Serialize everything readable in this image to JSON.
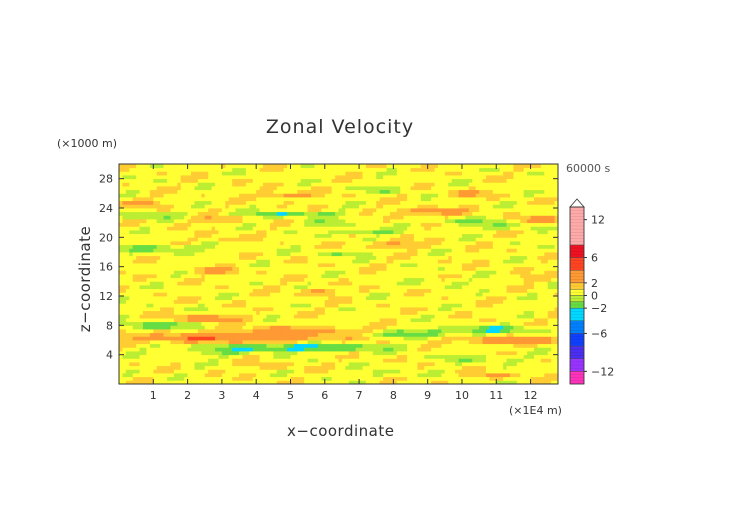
{
  "colors": {
    "bands": [
      "#ff33bb",
      "#9933ff",
      "#4b2ff0",
      "#1040ff",
      "#0080ff",
      "#00d8ff",
      "#66dd44",
      "#bbee33",
      "#ffff33",
      "#ffcc33",
      "#ff9933",
      "#ff4422",
      "#ee1122",
      "#ffaaaa"
    ]
  },
  "chart_data": {
    "type": "heatmap",
    "title": "Zonal Velocity",
    "time_label": "60000 s",
    "xlabel": "x−coordinate",
    "ylabel": "z−coordinate",
    "x_unit": "(×1E4 m)",
    "y_unit": "(×1000 m)",
    "xlim": [
      0,
      12.8
    ],
    "ylim": [
      0,
      30
    ],
    "x_ticks": [
      1,
      2,
      3,
      4,
      5,
      6,
      7,
      8,
      9,
      10,
      11,
      12
    ],
    "y_ticks": [
      4,
      8,
      12,
      16,
      20,
      24,
      28
    ],
    "colorbar": {
      "levels": [
        -14,
        -12,
        -10,
        -8,
        -6,
        -4,
        -2,
        -1,
        0,
        1,
        2,
        4,
        6,
        8,
        14
      ],
      "tick_values": [
        12,
        6,
        2,
        0,
        -2,
        -6,
        -12
      ],
      "tick_labels": [
        "12",
        "6",
        "2",
        "0",
        "−2",
        "−6",
        "−12"
      ],
      "extend": "max"
    },
    "field": {
      "description_of_features": "horizontally elongated alternating jets",
      "background": 0.6,
      "features": [
        {
          "x": 3.0,
          "z": 6.3,
          "u": 3.2,
          "sx": 3.0,
          "sz": 0.6
        },
        {
          "x": 11.5,
          "z": 6.0,
          "u": 3.0,
          "sx": 1.6,
          "sz": 0.5
        },
        {
          "x": 2.5,
          "z": 9.0,
          "u": 2.2,
          "sx": 1.2,
          "sz": 0.5
        },
        {
          "x": 5.5,
          "z": 7.3,
          "u": 2.6,
          "sx": 2.4,
          "sz": 0.5
        },
        {
          "x": 1.0,
          "z": 8.0,
          "u": -2.5,
          "sx": 1.2,
          "sz": 0.5
        },
        {
          "x": 5.0,
          "z": 5.0,
          "u": -3.4,
          "sx": 2.6,
          "sz": 0.5
        },
        {
          "x": 8.5,
          "z": 7.0,
          "u": -2.4,
          "sx": 1.6,
          "sz": 0.6
        },
        {
          "x": 11.0,
          "z": 7.5,
          "u": -2.2,
          "sx": 1.4,
          "sz": 0.5
        },
        {
          "x": 10.5,
          "z": 3.5,
          "u": -1.6,
          "sx": 1.2,
          "sz": 0.4
        },
        {
          "x": 2.8,
          "z": 4.2,
          "u": -1.2,
          "sx": 1.0,
          "sz": 0.4
        },
        {
          "x": 7.5,
          "z": 1.5,
          "u": -1.0,
          "sx": 1.0,
          "sz": 0.5
        },
        {
          "x": 1.2,
          "z": 18.5,
          "u": -2.0,
          "sx": 1.5,
          "sz": 0.5
        },
        {
          "x": 2.8,
          "z": 15.5,
          "u": 2.2,
          "sx": 0.7,
          "sz": 0.4
        },
        {
          "x": 5.8,
          "z": 12.6,
          "u": 2.0,
          "sx": 0.6,
          "sz": 0.5
        },
        {
          "x": 8.0,
          "z": 19.0,
          "u": 2.4,
          "sx": 0.8,
          "sz": 0.4
        },
        {
          "x": 7.2,
          "z": 20.8,
          "u": -2.0,
          "sx": 0.9,
          "sz": 0.4
        },
        {
          "x": 6.0,
          "z": 22.0,
          "u": -1.4,
          "sx": 0.8,
          "sz": 0.4
        },
        {
          "x": 9.0,
          "z": 23.5,
          "u": 2.6,
          "sx": 1.0,
          "sz": 0.5
        },
        {
          "x": 10.0,
          "z": 22.2,
          "u": -1.6,
          "sx": 1.0,
          "sz": 0.4
        },
        {
          "x": 12.4,
          "z": 22.5,
          "u": 2.0,
          "sx": 0.7,
          "sz": 0.5
        },
        {
          "x": 11.2,
          "z": 21.5,
          "u": -1.6,
          "sx": 0.9,
          "sz": 0.4
        },
        {
          "x": 5.0,
          "z": 23.2,
          "u": -2.2,
          "sx": 1.6,
          "sz": 0.4
        },
        {
          "x": 4.8,
          "z": 25.8,
          "u": 2.4,
          "sx": 0.8,
          "sz": 0.4
        },
        {
          "x": 0.5,
          "z": 24.8,
          "u": 2.2,
          "sx": 0.6,
          "sz": 0.4
        },
        {
          "x": 0.8,
          "z": 23.0,
          "u": -1.8,
          "sx": 0.8,
          "sz": 0.4
        },
        {
          "x": 2.8,
          "z": 22.5,
          "u": 1.6,
          "sx": 0.7,
          "sz": 0.4
        },
        {
          "x": 3.0,
          "z": 19.8,
          "u": 1.5,
          "sx": 0.6,
          "sz": 0.4
        },
        {
          "x": 6.5,
          "z": 17.8,
          "u": -1.2,
          "sx": 1.0,
          "sz": 0.4
        },
        {
          "x": 10.2,
          "z": 26.0,
          "u": 2.0,
          "sx": 0.6,
          "sz": 0.4
        },
        {
          "x": 7.8,
          "z": 26.5,
          "u": -1.4,
          "sx": 0.7,
          "sz": 0.4
        },
        {
          "x": 12.2,
          "z": 14.5,
          "u": 1.4,
          "sx": 0.7,
          "sz": 0.4
        },
        {
          "x": 9.5,
          "z": 14.0,
          "u": -0.8,
          "sx": 1.0,
          "sz": 0.5
        },
        {
          "x": 11.0,
          "z": 1.2,
          "u": 1.8,
          "sx": 0.6,
          "sz": 0.4
        },
        {
          "x": 4.5,
          "z": 2.5,
          "u": 1.2,
          "sx": 0.8,
          "sz": 0.4
        }
      ]
    }
  }
}
